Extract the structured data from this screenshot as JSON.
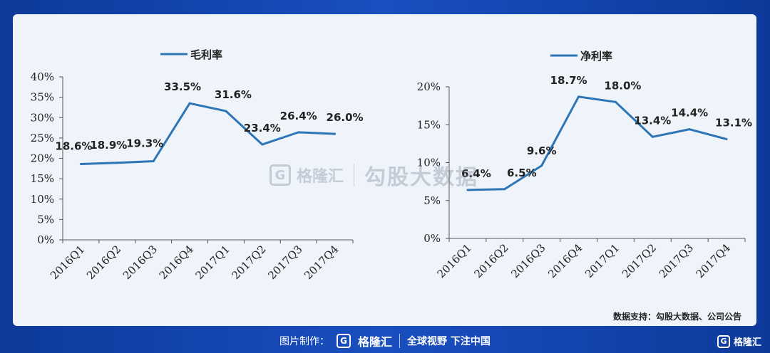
{
  "chart_data": [
    {
      "type": "line",
      "categories": [
        "2016Q1",
        "2016Q2",
        "2016Q3",
        "2016Q4",
        "2017Q1",
        "2017Q2",
        "2017Q3",
        "2017Q4"
      ],
      "series": [
        {
          "name": "毛利率",
          "values": [
            18.6,
            18.9,
            19.3,
            33.5,
            31.6,
            23.4,
            26.4,
            26.0
          ],
          "color": "#2e75b6"
        }
      ],
      "data_labels": [
        "18.6%",
        "18.9%",
        "19.3%",
        "33.5%",
        "31.6%",
        "23.4%",
        "26.4%",
        "26.0%"
      ],
      "yticks": [
        "0%",
        "5%",
        "10%",
        "15%",
        "20%",
        "25%",
        "30%",
        "35%",
        "40%"
      ],
      "ylim": [
        0,
        40
      ],
      "legend_position": "top-left"
    },
    {
      "type": "line",
      "categories": [
        "2016Q1",
        "2016Q2",
        "2016Q3",
        "2016Q4",
        "2017Q1",
        "2017Q2",
        "2017Q3",
        "2017Q4"
      ],
      "series": [
        {
          "name": "净利率",
          "values": [
            6.4,
            6.5,
            9.6,
            18.7,
            18.0,
            13.4,
            14.4,
            13.1
          ],
          "color": "#2e75b6"
        }
      ],
      "data_labels": [
        "6.4%",
        "6.5%",
        "9.6%",
        "18.7%",
        "18.0%",
        "13.4%",
        "14.4%",
        "13.1%"
      ],
      "yticks": [
        "0%",
        "5%",
        "10%",
        "15%",
        "20%"
      ],
      "ylim": [
        0,
        20
      ],
      "legend_position": "top-left"
    }
  ],
  "watermark": {
    "brand": "格隆汇",
    "text": "勾股大数据"
  },
  "source_note": "数据支持：勾股大数据、公司公告",
  "footer": {
    "prefix": "图片制作：",
    "logo": "G",
    "brand": "格隆汇",
    "slogan": "全球视野 下注中国"
  },
  "corner": {
    "logo": "G",
    "brand": "格隆汇"
  }
}
